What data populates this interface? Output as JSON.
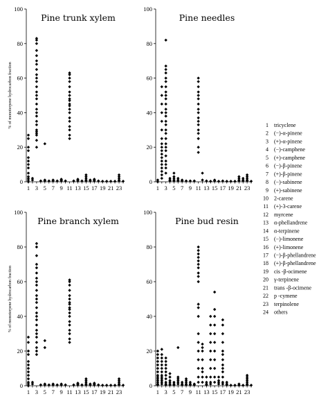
{
  "chart_data": [
    {
      "type": "scatter",
      "title": "Pine trunk xylem",
      "ylabel": "% of monoterpene hydrocarbon fraction",
      "xlabel": "",
      "ylim": [
        0,
        100
      ],
      "xlim": [
        0.5,
        24
      ],
      "xticks": [
        1,
        3,
        5,
        7,
        9,
        11,
        13,
        15,
        17,
        19,
        21,
        23
      ],
      "yticks": [
        0,
        20,
        40,
        60,
        80,
        100
      ],
      "series": [
        {
          "x": 1,
          "values": [
            0,
            1,
            2,
            3,
            5,
            8,
            10,
            12,
            14,
            18,
            20,
            25,
            27
          ]
        },
        {
          "x": 2,
          "values": [
            1,
            2
          ]
        },
        {
          "x": 3,
          "values": [
            20,
            24,
            27,
            28,
            29,
            30,
            33,
            35,
            38,
            40,
            42,
            45,
            48,
            50,
            52,
            55,
            58,
            60,
            62,
            65,
            68,
            70,
            73,
            76,
            80,
            82,
            83
          ]
        },
        {
          "x": 4,
          "values": [
            0.5
          ]
        },
        {
          "x": 5,
          "values": [
            0.5,
            1,
            22
          ]
        },
        {
          "x": 6,
          "values": [
            0.5
          ]
        },
        {
          "x": 7,
          "values": [
            0.5,
            1
          ]
        },
        {
          "x": 8,
          "values": [
            0.5
          ]
        },
        {
          "x": 9,
          "values": [
            0.5,
            1,
            1.5
          ]
        },
        {
          "x": 10,
          "values": [
            0.5
          ]
        },
        {
          "x": 11,
          "values": [
            25,
            27,
            30,
            32,
            35,
            37,
            40,
            42,
            44,
            45,
            47,
            48,
            50,
            52,
            55,
            58,
            60,
            62,
            63
          ]
        },
        {
          "x": 12,
          "values": [
            0.5
          ]
        },
        {
          "x": 13,
          "values": [
            0.5,
            1,
            1.5
          ]
        },
        {
          "x": 14,
          "values": [
            0.5
          ]
        },
        {
          "x": 15,
          "values": [
            0.5,
            1,
            2,
            3,
            4
          ]
        },
        {
          "x": 16,
          "values": [
            0.5,
            1
          ]
        },
        {
          "x": 17,
          "values": [
            0.5,
            1,
            1.5
          ]
        },
        {
          "x": 18,
          "values": [
            0.5
          ]
        },
        {
          "x": 19,
          "values": [
            0.3
          ]
        },
        {
          "x": 20,
          "values": [
            0.3
          ]
        },
        {
          "x": 21,
          "values": [
            0.3
          ]
        },
        {
          "x": 22,
          "values": [
            0.3
          ]
        },
        {
          "x": 23,
          "values": [
            0.5,
            1,
            2,
            3,
            4
          ]
        },
        {
          "x": 24,
          "values": [
            0.3
          ]
        }
      ]
    },
    {
      "type": "scatter",
      "title": "Pine needles",
      "ylabel": "",
      "xlabel": "",
      "ylim": [
        0,
        100
      ],
      "xlim": [
        0.5,
        24
      ],
      "xticks": [
        1,
        3,
        5,
        7,
        9,
        11,
        13,
        15,
        17,
        19,
        21,
        23
      ],
      "yticks": [
        0,
        20,
        40,
        60,
        80,
        100
      ],
      "series": [
        {
          "x": 1,
          "values": [
            0,
            1
          ]
        },
        {
          "x": 2,
          "values": [
            2,
            4,
            6,
            8,
            10,
            12,
            14,
            16,
            18,
            20,
            22,
            25,
            30,
            35,
            40,
            45,
            50,
            55
          ]
        },
        {
          "x": 3,
          "values": [
            5,
            8,
            10,
            12,
            15,
            18,
            20,
            22,
            25,
            28,
            30,
            33,
            35,
            38,
            40,
            42,
            45,
            48,
            50,
            52,
            55,
            58,
            60,
            63,
            65,
            67,
            82
          ]
        },
        {
          "x": 4,
          "values": [
            0.5,
            1,
            2
          ]
        },
        {
          "x": 5,
          "values": [
            0.5,
            1,
            2,
            3,
            5
          ]
        },
        {
          "x": 6,
          "values": [
            0.5,
            1,
            2
          ]
        },
        {
          "x": 7,
          "values": [
            0.5,
            1
          ]
        },
        {
          "x": 8,
          "values": [
            0.5
          ]
        },
        {
          "x": 9,
          "values": [
            0.5
          ]
        },
        {
          "x": 10,
          "values": [
            0.5
          ]
        },
        {
          "x": 11,
          "values": [
            17,
            20,
            25,
            28,
            30,
            33,
            35,
            37,
            40,
            42,
            45,
            48,
            50,
            52,
            55,
            58,
            60
          ]
        },
        {
          "x": 12,
          "values": [
            1,
            5
          ]
        },
        {
          "x": 13,
          "values": [
            0.5
          ]
        },
        {
          "x": 14,
          "values": [
            0.3
          ]
        },
        {
          "x": 15,
          "values": [
            0.5,
            1
          ]
        },
        {
          "x": 16,
          "values": [
            0.3
          ]
        },
        {
          "x": 17,
          "values": [
            0.5
          ]
        },
        {
          "x": 18,
          "values": [
            0.3
          ]
        },
        {
          "x": 19,
          "values": [
            0.3
          ]
        },
        {
          "x": 20,
          "values": [
            0.3
          ]
        },
        {
          "x": 21,
          "values": [
            0.5,
            1,
            2,
            3
          ]
        },
        {
          "x": 22,
          "values": [
            0.5,
            1,
            2
          ]
        },
        {
          "x": 23,
          "values": [
            0.5,
            1,
            2,
            3,
            4
          ]
        },
        {
          "x": 24,
          "values": [
            0.3
          ]
        }
      ]
    },
    {
      "type": "scatter",
      "title": "Pine branch xylem",
      "ylabel": "% of monoterpene hydrocarbon fraction",
      "xlabel": "",
      "ylim": [
        0,
        100
      ],
      "xlim": [
        0.5,
        24
      ],
      "xticks": [
        1,
        3,
        5,
        7,
        9,
        11,
        13,
        15,
        17,
        19,
        21,
        23
      ],
      "yticks": [
        0,
        20,
        40,
        60,
        80,
        100
      ],
      "series": [
        {
          "x": 1,
          "values": [
            0,
            1,
            2,
            4,
            6,
            8,
            10,
            12,
            14,
            18,
            20,
            25,
            28
          ]
        },
        {
          "x": 2,
          "values": [
            1,
            2
          ]
        },
        {
          "x": 3,
          "values": [
            18,
            20,
            22,
            25,
            28,
            30,
            32,
            35,
            38,
            40,
            42,
            45,
            48,
            50,
            52,
            55,
            58,
            60,
            62,
            65,
            68,
            70,
            75,
            80,
            82
          ]
        },
        {
          "x": 4,
          "values": [
            0.5
          ]
        },
        {
          "x": 5,
          "values": [
            0.5,
            1,
            22,
            26
          ]
        },
        {
          "x": 6,
          "values": [
            0.5
          ]
        },
        {
          "x": 7,
          "values": [
            0.5,
            1
          ]
        },
        {
          "x": 8,
          "values": [
            0.5
          ]
        },
        {
          "x": 9,
          "values": [
            0.5,
            1
          ]
        },
        {
          "x": 10,
          "values": [
            0.5
          ]
        },
        {
          "x": 11,
          "values": [
            25,
            27,
            30,
            32,
            35,
            37,
            40,
            42,
            44,
            45,
            47,
            48,
            50,
            52,
            55,
            58,
            60,
            61
          ]
        },
        {
          "x": 12,
          "values": [
            0.5
          ]
        },
        {
          "x": 13,
          "values": [
            0.5,
            1,
            1.5
          ]
        },
        {
          "x": 14,
          "values": [
            0.5
          ]
        },
        {
          "x": 15,
          "values": [
            0.5,
            1,
            2,
            3,
            4
          ]
        },
        {
          "x": 16,
          "values": [
            0.5,
            1
          ]
        },
        {
          "x": 17,
          "values": [
            0.5,
            1,
            1.5
          ]
        },
        {
          "x": 18,
          "values": [
            0.5
          ]
        },
        {
          "x": 19,
          "values": [
            0.3
          ]
        },
        {
          "x": 20,
          "values": [
            0.3
          ]
        },
        {
          "x": 21,
          "values": [
            0.3
          ]
        },
        {
          "x": 22,
          "values": [
            0.3
          ]
        },
        {
          "x": 23,
          "values": [
            0.5,
            1,
            2,
            3,
            4
          ]
        },
        {
          "x": 24,
          "values": [
            0.3
          ]
        }
      ]
    },
    {
      "type": "scatter",
      "title": "Pine bud resin",
      "ylabel": "",
      "xlabel": "",
      "ylim": [
        0,
        100
      ],
      "xlim": [
        0.5,
        24
      ],
      "xticks": [
        1,
        3,
        5,
        7,
        9,
        11,
        13,
        15,
        17,
        19,
        21,
        23
      ],
      "yticks": [
        0,
        20,
        40,
        60,
        80,
        100
      ],
      "series": [
        {
          "x": 1,
          "values": [
            0.5,
            1,
            2,
            3,
            4,
            5,
            6,
            8,
            10,
            12,
            14,
            16,
            18,
            20
          ]
        },
        {
          "x": 2,
          "values": [
            1,
            2,
            3,
            4,
            5,
            6,
            8,
            10,
            12,
            14,
            16,
            18,
            21
          ]
        },
        {
          "x": 3,
          "values": [
            0.5,
            1,
            2,
            4,
            6,
            8,
            10,
            12,
            14,
            16
          ]
        },
        {
          "x": 4,
          "values": [
            0.5,
            1,
            2,
            3,
            5,
            7
          ]
        },
        {
          "x": 5,
          "values": [
            0.5,
            1,
            2
          ]
        },
        {
          "x": 6,
          "values": [
            1,
            2,
            3,
            4,
            5,
            22
          ]
        },
        {
          "x": 7,
          "values": [
            0.5,
            1,
            2
          ]
        },
        {
          "x": 8,
          "values": [
            0.5,
            1,
            2,
            3,
            4
          ]
        },
        {
          "x": 9,
          "values": [
            0.5,
            1,
            2
          ]
        },
        {
          "x": 10,
          "values": [
            0.5,
            1
          ]
        },
        {
          "x": 11,
          "values": [
            2,
            5,
            10,
            15,
            20,
            25,
            30,
            40,
            45,
            47,
            60,
            63,
            65,
            68,
            70,
            72,
            74,
            76,
            78,
            80
          ]
        },
        {
          "x": 12,
          "values": [
            2,
            5,
            8,
            10,
            15,
            20,
            22,
            24
          ]
        },
        {
          "x": 13,
          "values": [
            0.5,
            1,
            2,
            5
          ]
        },
        {
          "x": 14,
          "values": [
            1,
            2,
            5,
            10,
            15,
            20,
            25,
            30,
            35,
            40
          ]
        },
        {
          "x": 15,
          "values": [
            2,
            5,
            10,
            15,
            20,
            25,
            30,
            35,
            40,
            44,
            54
          ]
        },
        {
          "x": 16,
          "values": [
            1,
            2,
            3,
            5
          ]
        },
        {
          "x": 17,
          "values": [
            1,
            2,
            5,
            8,
            10,
            12,
            15,
            18,
            20,
            25,
            30,
            35,
            38
          ]
        },
        {
          "x": 18,
          "values": [
            0.5,
            1,
            2
          ]
        },
        {
          "x": 19,
          "values": [
            0.3
          ]
        },
        {
          "x": 20,
          "values": [
            0.3
          ]
        },
        {
          "x": 21,
          "values": [
            0.3,
            1
          ]
        },
        {
          "x": 22,
          "values": [
            0.3
          ]
        },
        {
          "x": 23,
          "values": [
            0.5,
            1,
            2,
            3,
            4,
            5,
            6
          ]
        },
        {
          "x": 24,
          "values": [
            0.3
          ]
        }
      ]
    }
  ],
  "legend": [
    {
      "num": "1",
      "text": "tricyclene"
    },
    {
      "num": "2",
      "text": "(−)-α-pinene"
    },
    {
      "num": "3",
      "text": "(+)-α-pinene"
    },
    {
      "num": "4",
      "text": "(−)-camphene"
    },
    {
      "num": "5",
      "text": "(+)-camphene"
    },
    {
      "num": "6",
      "text": "(−)-β-pinene"
    },
    {
      "num": "7",
      "text": "(+)-β-pinene"
    },
    {
      "num": "8",
      "text": "(−)-sabinene"
    },
    {
      "num": "9",
      "text": "(+)-sabinene"
    },
    {
      "num": "10",
      "text": "2-carene"
    },
    {
      "num": "11",
      "text": "(+)-3-carene"
    },
    {
      "num": "12",
      "text": "myrcene"
    },
    {
      "num": "13",
      "text": "α-phellandrene"
    },
    {
      "num": "14",
      "text": "α-terpinene"
    },
    {
      "num": "15",
      "text": "(−)-limonene"
    },
    {
      "num": "16",
      "text": "(+)-limonene"
    },
    {
      "num": "17",
      "text": "(−)-β-phellandrene"
    },
    {
      "num": "18",
      "text": "(+)-β-phellandrene"
    },
    {
      "num": "19",
      "text": "cis -β-ocimene"
    },
    {
      "num": "20",
      "text": "γ-terpinene"
    },
    {
      "num": "21",
      "text": "trans -β-ocimene"
    },
    {
      "num": "22",
      "text": "p -cymene"
    },
    {
      "num": "23",
      "text": "terpinolene"
    },
    {
      "num": "24",
      "text": "others"
    }
  ]
}
